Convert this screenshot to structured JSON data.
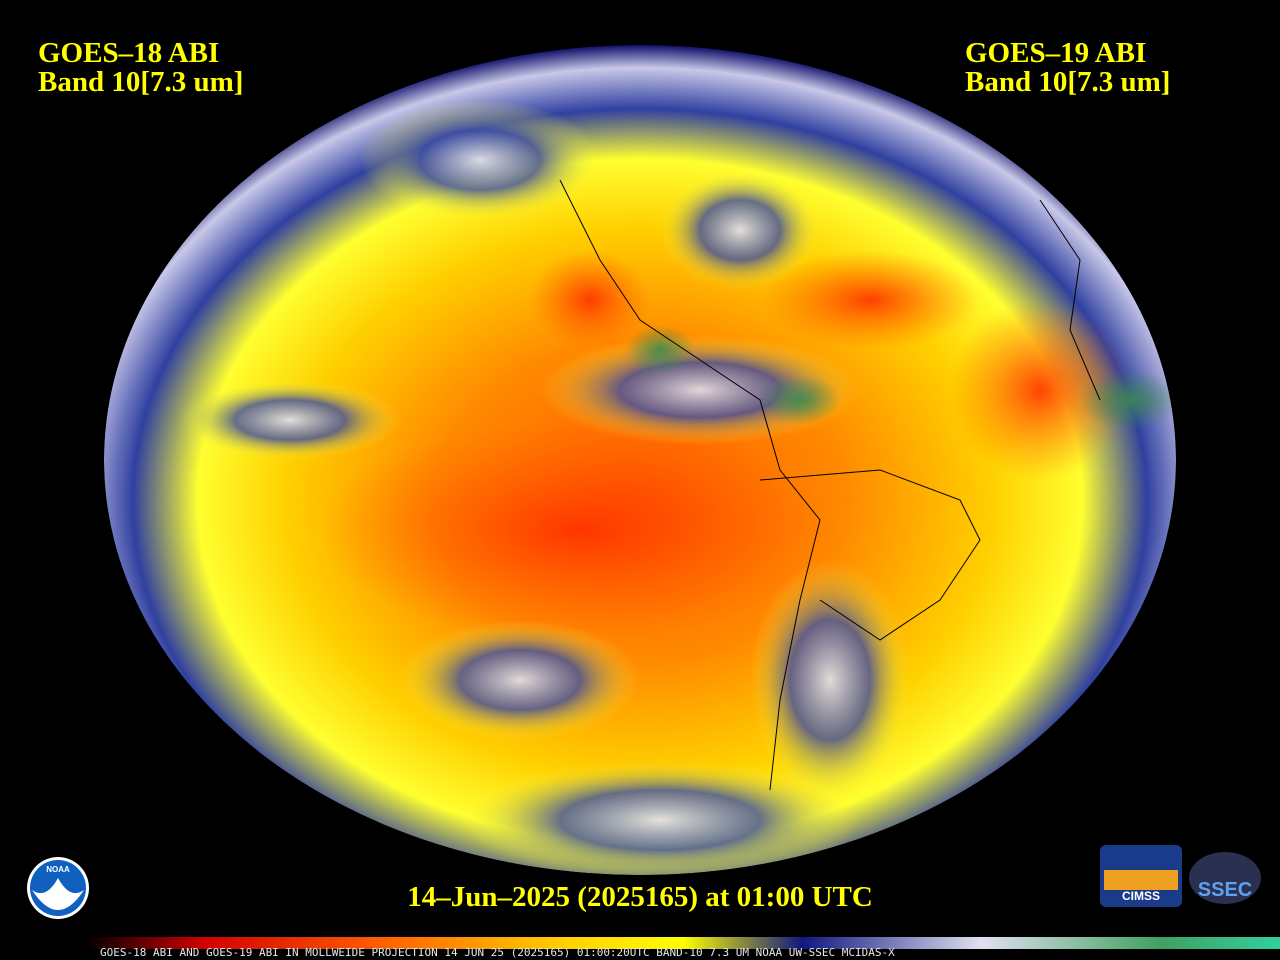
{
  "header": {
    "left": {
      "satellite": "GOES–18 ABI",
      "band": "Band 10[7.3 um]"
    },
    "right": {
      "satellite": "GOES–19 ABI",
      "band": "Band 10[7.3 um]"
    }
  },
  "timestamp": "14–Jun–2025 (2025165) at 01:00 UTC",
  "footer": "GOES-18 ABI AND GOES-19 ABI IN MOLLWEIDE PROJECTION 14 JUN 25 (2025165) 01:00:20UTC BAND-10 7.3 UM NOAA UW-SSEC MCIDAS-X",
  "logos": {
    "noaa": "NOAA",
    "cimss": "CIMSS",
    "ssec": "SSEC"
  }
}
